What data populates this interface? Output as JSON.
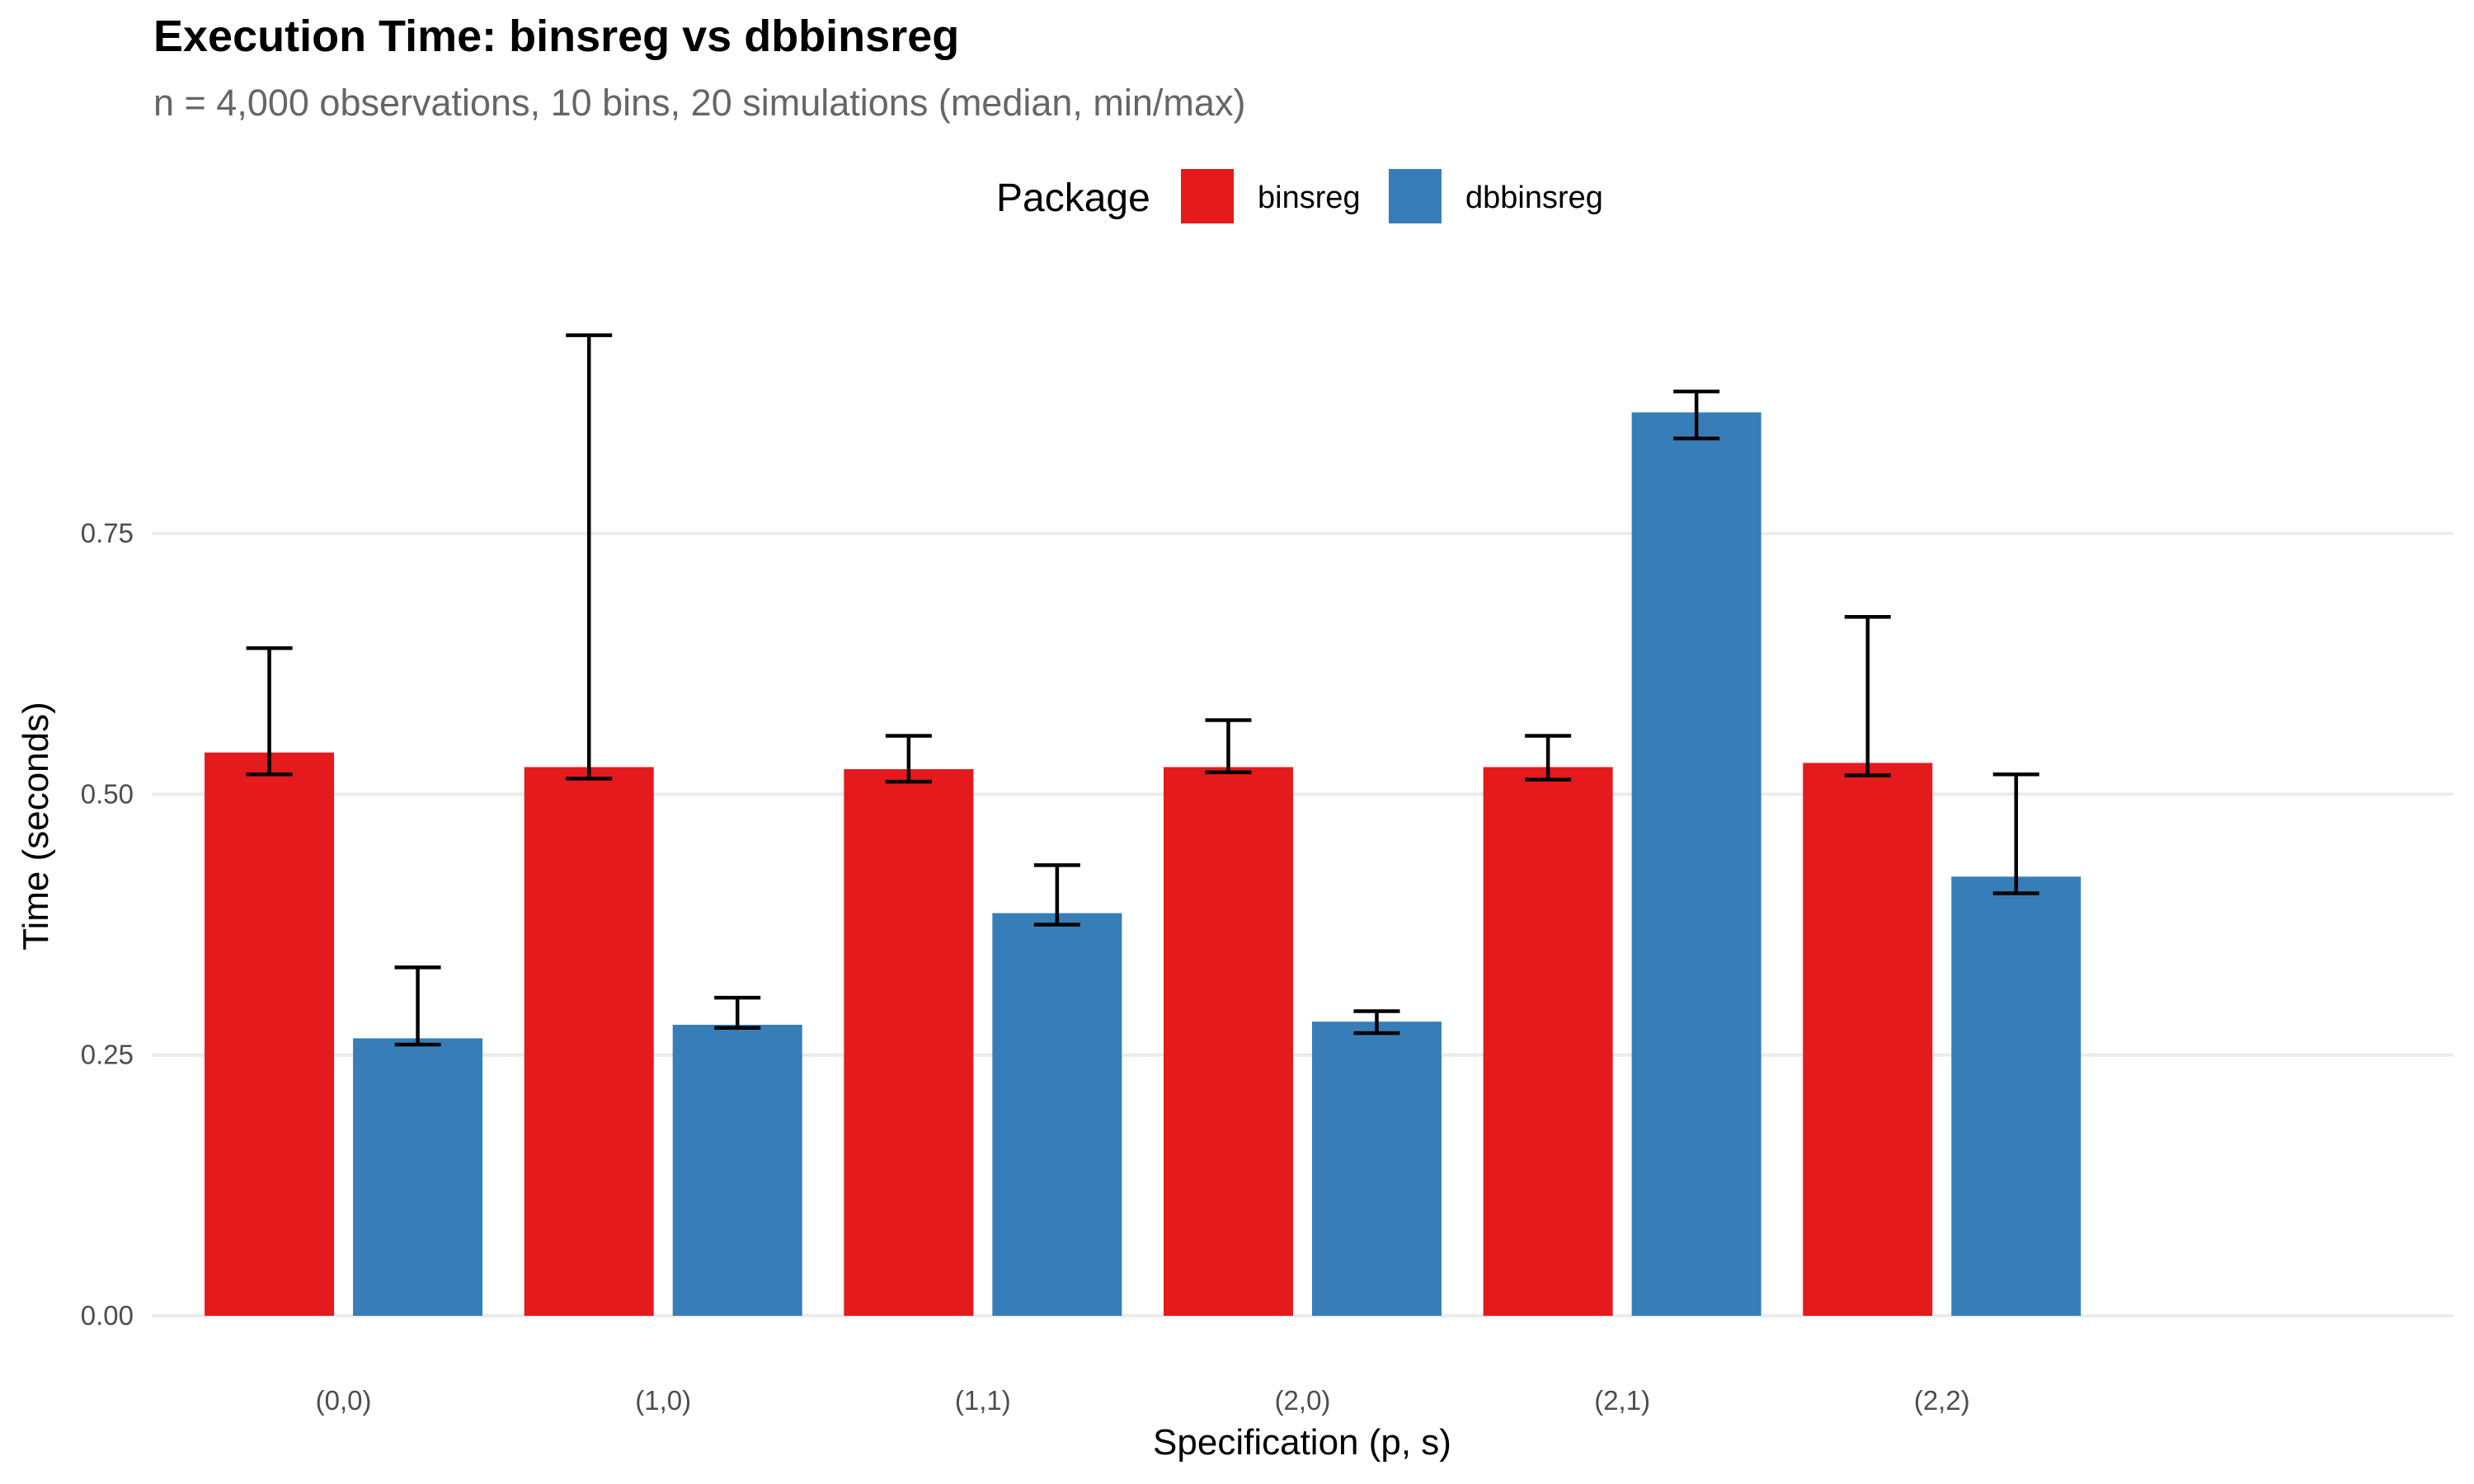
{
  "chart_data": {
    "type": "bar",
    "title": "Execution Time: binsreg vs dbbinsreg",
    "subtitle": "n = 4,000 observations, 10 bins, 20 simulations (median, min/max)",
    "xlabel": "Specification (p, s)",
    "ylabel": "Time (seconds)",
    "categories": [
      "(0,0)",
      "(1,0)",
      "(1,1)",
      "(2,0)",
      "(2,1)",
      "(2,2)"
    ],
    "ylim": [
      0,
      0.97
    ],
    "yticks": [
      0,
      0.25,
      0.5,
      0.75
    ],
    "ytick_labels": [
      "0.00",
      "0.25",
      "0.50",
      "0.75"
    ],
    "grid": "horizontal-major",
    "legend": {
      "title": "Package",
      "position": "top-center",
      "entries": [
        "binsreg",
        "dbbinsreg"
      ]
    },
    "series": [
      {
        "name": "binsreg",
        "color": "#e41a1c",
        "values": [
          0.54,
          0.526,
          0.524,
          0.526,
          0.526,
          0.53
        ],
        "min": [
          0.519,
          0.515,
          0.512,
          0.521,
          0.514,
          0.518
        ],
        "max": [
          0.64,
          0.94,
          0.556,
          0.571,
          0.556,
          0.67
        ]
      },
      {
        "name": "dbbinsreg",
        "color": "#377eb8",
        "values": [
          0.266,
          0.279,
          0.386,
          0.282,
          0.866,
          0.421
        ],
        "min": [
          0.26,
          0.276,
          0.375,
          0.271,
          0.841,
          0.405
        ],
        "max": [
          0.334,
          0.305,
          0.432,
          0.292,
          0.886,
          0.519
        ]
      }
    ]
  }
}
